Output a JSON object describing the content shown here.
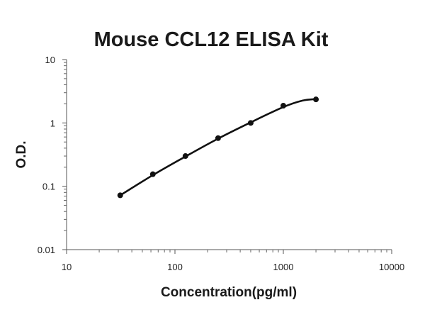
{
  "chart_data": {
    "type": "scatter",
    "title": "Mouse CCL12 ELISA Kit",
    "xlabel": "Concentration(pg/ml)",
    "ylabel": "O.D.",
    "x_scale": "log",
    "y_scale": "log",
    "xlim": [
      10,
      10000
    ],
    "ylim": [
      0.01,
      10
    ],
    "x_ticks": [
      "10",
      "100",
      "1000",
      "10000"
    ],
    "y_ticks": [
      "0.01",
      "0.1",
      "1",
      "10"
    ],
    "grid": false,
    "legend": "none",
    "series": [
      {
        "x": [
          31.25,
          62.5,
          125,
          250,
          500,
          1000,
          2000
        ],
        "y": [
          0.072,
          0.155,
          0.3,
          0.575,
          1.0,
          1.87,
          2.35
        ]
      }
    ],
    "fit_curve": {
      "x": [
        31.25,
        62.5,
        125,
        250,
        500,
        1000,
        1500,
        2000
      ],
      "y": [
        0.072,
        0.15,
        0.295,
        0.565,
        1.02,
        1.78,
        2.25,
        2.38
      ]
    },
    "colors": {
      "points": "#111111",
      "curve": "#111111",
      "axes": "#555555"
    }
  }
}
